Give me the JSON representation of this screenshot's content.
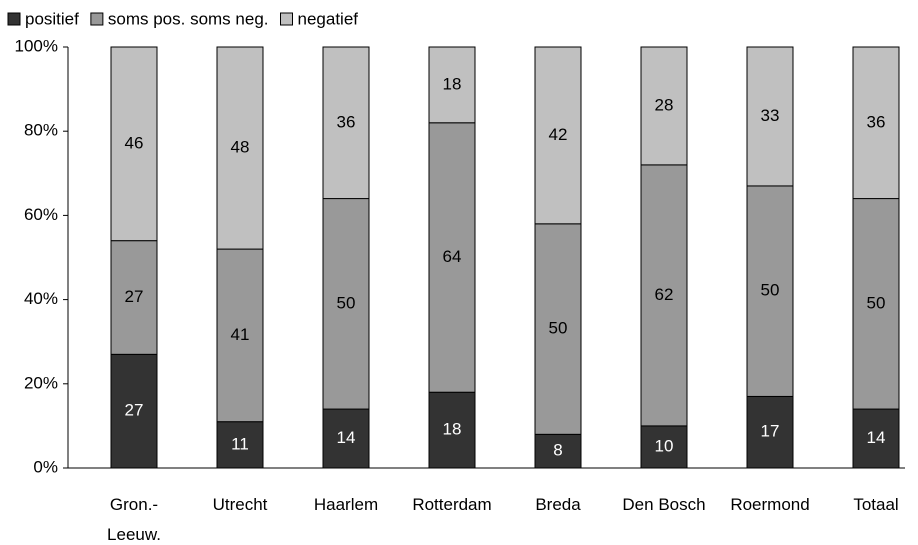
{
  "chart_data": {
    "type": "stacked_bar",
    "categories": [
      "Gron.- Leeuw.",
      "Utrecht",
      "Haarlem",
      "Rotterdam",
      "Breda",
      "Den Bosch",
      "Roermond",
      "Totaal"
    ],
    "series": [
      {
        "name": "positief",
        "color": "#333333",
        "values": [
          27,
          11,
          14,
          18,
          8,
          10,
          17,
          14
        ]
      },
      {
        "name": "soms pos. soms neg.",
        "color": "#999999",
        "values": [
          27,
          41,
          50,
          64,
          50,
          62,
          50,
          50
        ]
      },
      {
        "name": "negatief",
        "color": "#c0c0c0",
        "values": [
          46,
          48,
          36,
          18,
          42,
          28,
          33,
          36
        ]
      }
    ],
    "ylim": [
      0,
      100
    ],
    "yticks": [
      {
        "value": 0,
        "label": "0%"
      },
      {
        "value": 20,
        "label": "20%"
      },
      {
        "value": 40,
        "label": "40%"
      },
      {
        "value": 60,
        "label": "60%"
      },
      {
        "value": 80,
        "label": "80%"
      },
      {
        "value": 100,
        "label": "100%"
      }
    ],
    "legend": "top-left"
  }
}
